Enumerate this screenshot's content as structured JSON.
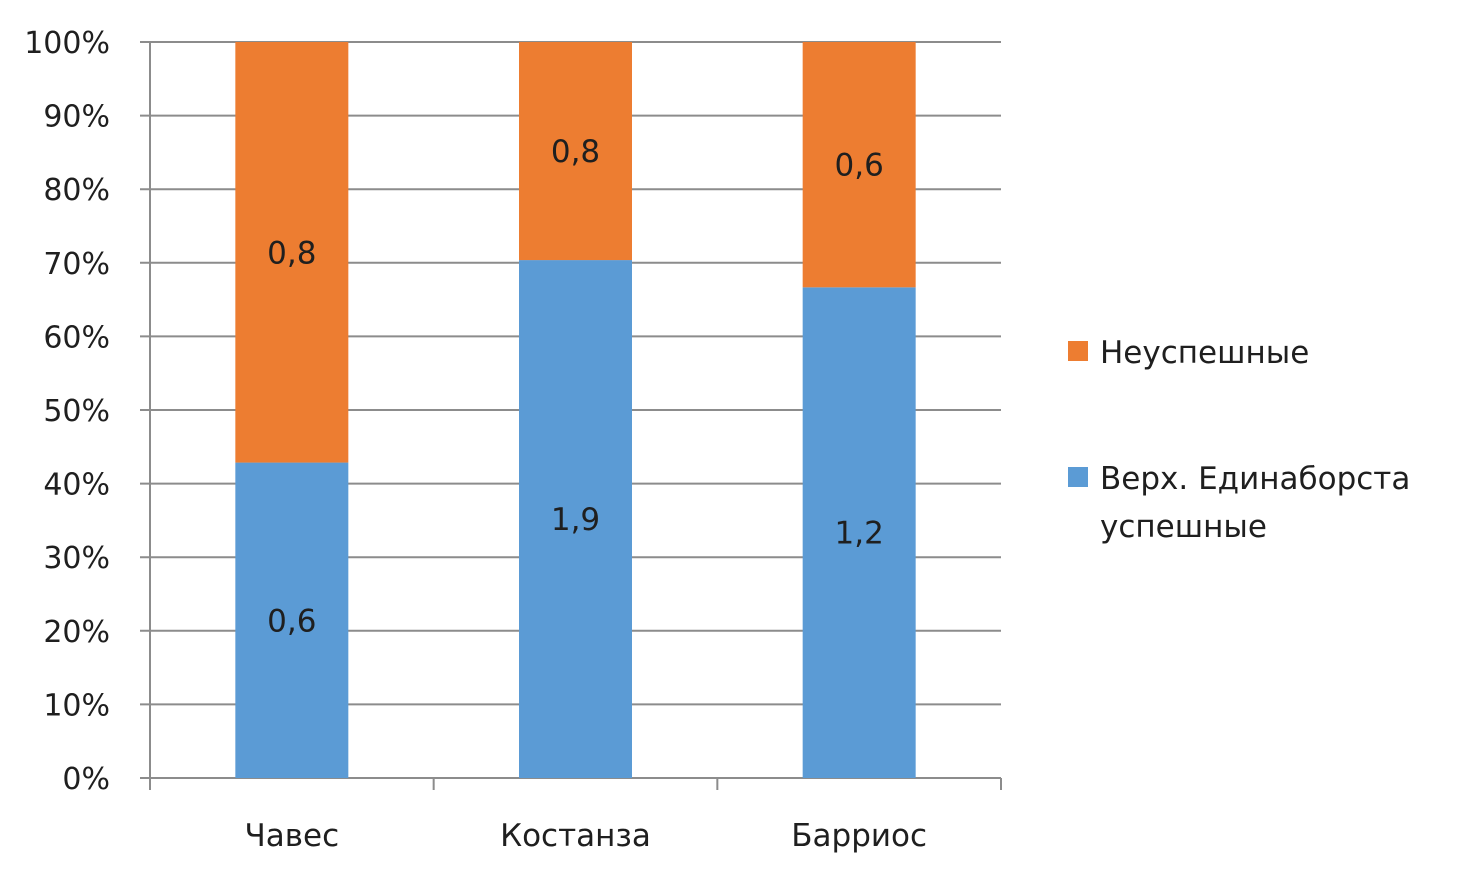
{
  "chart_data": {
    "type": "bar",
    "stacked": "percent",
    "categories": [
      "Чавес",
      "Костанза",
      "Барриос"
    ],
    "series": [
      {
        "name": "Верх. Единаборста успешные",
        "name_lines": [
          "Верх. Единаборста",
          "успешные"
        ],
        "values": [
          0.6,
          1.9,
          1.2
        ],
        "labels": [
          "0,6",
          "1,9",
          "1,2"
        ],
        "color": "#5B9BD5"
      },
      {
        "name": "Неуспешные",
        "name_lines": [
          "Неуспешные"
        ],
        "values": [
          0.8,
          0.8,
          0.6
        ],
        "labels": [
          "0,8",
          "0,8",
          "0,6"
        ],
        "color": "#ED7D31"
      }
    ],
    "ylim": [
      0,
      100
    ],
    "yticks": [
      0,
      10,
      20,
      30,
      40,
      50,
      60,
      70,
      80,
      90,
      100
    ],
    "ytick_labels": [
      "0%",
      "10%",
      "20%",
      "30%",
      "40%",
      "50%",
      "60%",
      "70%",
      "80%",
      "90%",
      "100%"
    ],
    "grid": true,
    "legend_position": "right",
    "legend_order": [
      1,
      0
    ],
    "title": "",
    "xlabel": "",
    "ylabel": ""
  }
}
